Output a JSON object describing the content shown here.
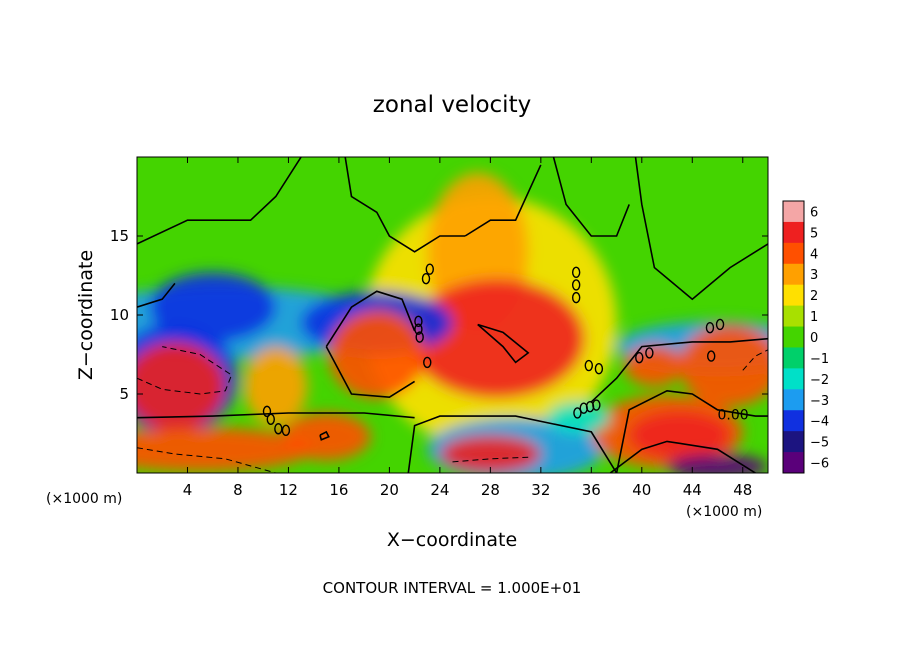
{
  "chart_data": {
    "type": "heatmap",
    "title": "zonal velocity",
    "xlabel": "X−coordinate",
    "ylabel": "Z−coordinate",
    "x_unit_left": "(×1000 m)",
    "x_unit_right": "(×1000 m)",
    "xlim": [
      0,
      50
    ],
    "ylim": [
      0,
      20
    ],
    "x_ticks": [
      4,
      8,
      12,
      16,
      20,
      24,
      28,
      32,
      36,
      40,
      44,
      48
    ],
    "y_ticks": [
      5,
      10,
      15
    ],
    "colorbar": {
      "range": [
        -6,
        6
      ],
      "ticks": [
        6,
        5,
        4,
        3,
        2,
        1,
        0,
        -1,
        -2,
        -3,
        -4,
        -5,
        -6
      ],
      "tick_labels": [
        "6",
        "5",
        "4",
        "3",
        "2",
        "1",
        "0",
        "−1",
        "−2",
        "−3",
        "−4",
        "−5",
        "−6"
      ],
      "colors": [
        "#f4a6a6",
        "#ee2020",
        "#ff5000",
        "#ffa000",
        "#ffe000",
        "#a8e000",
        "#44d400",
        "#00d06a",
        "#00e0c8",
        "#1c9cf0",
        "#1030e0",
        "#1c1480",
        "#5a007a"
      ]
    },
    "contour_label": "0.00",
    "contour_interval_text": "CONTOUR INTERVAL = 1.000E+01",
    "grid": false,
    "regions": [
      {
        "shape": "ellipse",
        "cx": 28,
        "cy": 9.5,
        "rx": 10,
        "ry": 8,
        "value": 2
      },
      {
        "shape": "ellipse",
        "cx": 27,
        "cy": 14,
        "rx": 4,
        "ry": 5,
        "value": 3
      },
      {
        "shape": "ellipse",
        "cx": 28.5,
        "cy": 8.5,
        "rx": 7,
        "ry": 3.8,
        "value": 5
      },
      {
        "shape": "ellipse",
        "cx": 7,
        "cy": 9.5,
        "rx": 13,
        "ry": 2.3,
        "value": -3
      },
      {
        "shape": "ellipse",
        "cx": 6,
        "cy": 10.5,
        "rx": 5,
        "ry": 2.2,
        "value": -4
      },
      {
        "shape": "ellipse",
        "cx": 19,
        "cy": 9.5,
        "rx": 6,
        "ry": 2,
        "value": -4
      },
      {
        "shape": "ellipse",
        "cx": 46,
        "cy": 8,
        "rx": 8,
        "ry": 1.6,
        "value": -3
      },
      {
        "shape": "ellipse",
        "cx": 30,
        "cy": 1.5,
        "rx": 7,
        "ry": 2,
        "value": -3
      },
      {
        "shape": "ellipse",
        "cx": 3,
        "cy": 6,
        "rx": 5,
        "ry": 3.5,
        "value": -4
      },
      {
        "shape": "ellipse",
        "cx": 19,
        "cy": 7.5,
        "rx": 3.8,
        "ry": 2.8,
        "value": 4
      },
      {
        "shape": "ellipse",
        "cx": 47,
        "cy": 6.8,
        "rx": 4,
        "ry": 2.6,
        "value": 4
      },
      {
        "shape": "ellipse",
        "cx": 41,
        "cy": 6.8,
        "rx": 2.4,
        "ry": 1.3,
        "value": 4
      },
      {
        "shape": "ellipse",
        "cx": 3,
        "cy": 5.5,
        "rx": 4,
        "ry": 2.8,
        "value": 5
      },
      {
        "shape": "ellipse",
        "cx": 42,
        "cy": 2.6,
        "rx": 6,
        "ry": 2.3,
        "value": 4
      },
      {
        "shape": "ellipse",
        "cx": 43,
        "cy": 2.4,
        "rx": 4,
        "ry": 1.5,
        "value": 5
      },
      {
        "shape": "ellipse",
        "cx": 5,
        "cy": 1.5,
        "rx": 9,
        "ry": 1.4,
        "value": 4
      },
      {
        "shape": "ellipse",
        "cx": 15,
        "cy": 2.3,
        "rx": 3.5,
        "ry": 1.5,
        "value": 4
      },
      {
        "shape": "ellipse",
        "cx": 11,
        "cy": 5.5,
        "rx": 2.5,
        "ry": 2.5,
        "value": 3
      },
      {
        "shape": "ellipse",
        "cx": 28,
        "cy": 1.2,
        "rx": 4,
        "ry": 1.2,
        "value": 5
      },
      {
        "shape": "ellipse",
        "cx": 46,
        "cy": 0.4,
        "rx": 4,
        "ry": 0.8,
        "value": -6
      },
      {
        "shape": "ellipse",
        "cx": 35,
        "cy": 3.5,
        "rx": 2.5,
        "ry": 1,
        "value": -2
      }
    ],
    "contours": [
      {
        "style": "solid",
        "points": [
          [
            0,
            14.5
          ],
          [
            4,
            16
          ],
          [
            9,
            16
          ],
          [
            11,
            17.5
          ],
          [
            13,
            20
          ]
        ]
      },
      {
        "style": "solid",
        "points": [
          [
            16.5,
            20
          ],
          [
            17,
            17.5
          ],
          [
            19,
            16.5
          ],
          [
            20,
            15
          ],
          [
            22,
            14
          ],
          [
            24,
            15
          ],
          [
            26,
            15
          ]
        ]
      },
      {
        "style": "solid",
        "points": [
          [
            26,
            15
          ],
          [
            28,
            16
          ],
          [
            30,
            16
          ],
          [
            32,
            19.5
          ]
        ]
      },
      {
        "style": "solid",
        "points": [
          [
            33,
            20
          ],
          [
            34,
            17
          ],
          [
            36,
            15
          ],
          [
            38,
            15
          ],
          [
            39,
            17
          ]
        ]
      },
      {
        "style": "solid",
        "points": [
          [
            39.5,
            20
          ],
          [
            40,
            17
          ],
          [
            41,
            13
          ],
          [
            44,
            11
          ],
          [
            47,
            13
          ],
          [
            50,
            14.5
          ]
        ]
      },
      {
        "style": "solid",
        "points": [
          [
            0,
            10.5
          ],
          [
            2,
            11
          ],
          [
            3,
            12
          ]
        ]
      },
      {
        "style": "solid",
        "points": [
          [
            15,
            8
          ],
          [
            17,
            10.5
          ],
          [
            19,
            11.5
          ],
          [
            21,
            11
          ],
          [
            22,
            9
          ]
        ]
      },
      {
        "style": "solid",
        "points": [
          [
            15,
            8
          ],
          [
            17,
            5
          ],
          [
            20,
            4.8
          ],
          [
            22,
            5.8
          ]
        ]
      },
      {
        "style": "solid",
        "points": [
          [
            0,
            3.5
          ],
          [
            6,
            3.6
          ],
          [
            12,
            3.8
          ],
          [
            18,
            3.8
          ],
          [
            22,
            3.5
          ]
        ]
      },
      {
        "style": "solid",
        "points": [
          [
            21.5,
            0
          ],
          [
            22,
            3
          ],
          [
            24,
            3.6
          ],
          [
            30,
            3.6
          ],
          [
            33,
            3.1
          ],
          [
            36,
            2.6
          ],
          [
            38,
            0
          ]
        ]
      },
      {
        "style": "solid",
        "points": [
          [
            38,
            0
          ],
          [
            39,
            4
          ],
          [
            42,
            5.2
          ],
          [
            44,
            5
          ],
          [
            46,
            4
          ],
          [
            49,
            3.6
          ],
          [
            50,
            3.6
          ]
        ]
      },
      {
        "style": "solid",
        "points": [
          [
            37.5,
            0
          ],
          [
            40,
            1.5
          ],
          [
            42,
            2
          ],
          [
            46,
            1.5
          ],
          [
            49,
            0
          ]
        ]
      },
      {
        "style": "solid",
        "points": [
          [
            36,
            4.5
          ],
          [
            38,
            6
          ],
          [
            40,
            8
          ],
          [
            44,
            8.3
          ],
          [
            47,
            8.3
          ],
          [
            50,
            8.5
          ]
        ]
      },
      {
        "style": "solid",
        "points": [
          [
            27,
            9.4
          ],
          [
            29,
            8.9
          ],
          [
            31,
            7.6
          ],
          [
            30,
            7
          ],
          [
            29,
            8
          ],
          [
            27,
            9.4
          ]
        ]
      },
      {
        "style": "solid",
        "points": [
          [
            14.5,
            2.4
          ],
          [
            15,
            2.6
          ],
          [
            15.2,
            2.3
          ],
          [
            14.6,
            2.1
          ],
          [
            14.5,
            2.4
          ]
        ]
      },
      {
        "style": "dashed",
        "points": [
          [
            0,
            6
          ],
          [
            2,
            5.3
          ],
          [
            5,
            5
          ],
          [
            7,
            5.2
          ],
          [
            7.5,
            6.2
          ],
          [
            5,
            7.5
          ],
          [
            2,
            8
          ]
        ]
      },
      {
        "style": "dashed",
        "points": [
          [
            0,
            1.6
          ],
          [
            3,
            1.2
          ],
          [
            7,
            0.9
          ],
          [
            11,
            0
          ]
        ]
      },
      {
        "style": "dashed",
        "points": [
          [
            25,
            0.7
          ],
          [
            28,
            0.9
          ],
          [
            31,
            1
          ]
        ]
      },
      {
        "style": "dashed",
        "points": [
          [
            48,
            6.5
          ],
          [
            49,
            7.4
          ],
          [
            50,
            7.8
          ]
        ]
      }
    ],
    "small_contours": [
      [
        10.3,
        3.9
      ],
      [
        10.6,
        3.4
      ],
      [
        11.2,
        2.8
      ],
      [
        11.8,
        2.7
      ],
      [
        22.3,
        9.6
      ],
      [
        22.3,
        9.1
      ],
      [
        22.4,
        8.6
      ],
      [
        34.9,
        3.8
      ],
      [
        35.4,
        4.1
      ],
      [
        35.9,
        4.2
      ],
      [
        36.4,
        4.3
      ],
      [
        34.8,
        12.7
      ],
      [
        34.8,
        11.9
      ],
      [
        34.8,
        11.1
      ],
      [
        22.9,
        12.3
      ],
      [
        23.2,
        12.9
      ],
      [
        39.8,
        7.3
      ],
      [
        40.6,
        7.6
      ],
      [
        45.4,
        9.2
      ],
      [
        46.2,
        9.4
      ],
      [
        45.5,
        7.4
      ],
      [
        23,
        7
      ],
      [
        35.8,
        6.8
      ],
      [
        36.6,
        6.6
      ]
    ],
    "contour_label_position": [
      46,
      3.7
    ]
  }
}
